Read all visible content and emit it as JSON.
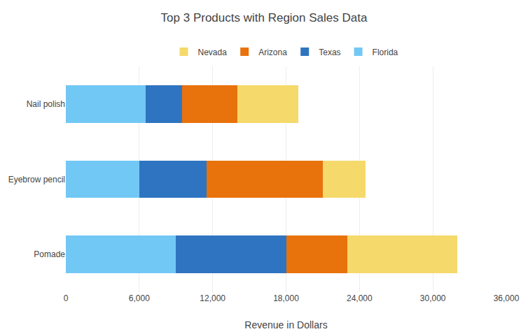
{
  "chart_data": {
    "type": "bar",
    "orientation": "horizontal",
    "stacked": true,
    "title": "Top 3 Products with Region Sales Data",
    "xlabel": "Revenue in Dollars",
    "categories": [
      "Pomade",
      "Eyebrow pencil",
      "Nail polish"
    ],
    "series": [
      {
        "name": "Florida",
        "color": "#72C8F5",
        "values": [
          9000,
          6000,
          6500
        ]
      },
      {
        "name": "Texas",
        "color": "#2E74C0",
        "values": [
          9000,
          5500,
          3000
        ]
      },
      {
        "name": "Arizona",
        "color": "#E8720C",
        "values": [
          5000,
          9500,
          4500
        ]
      },
      {
        "name": "Nevada",
        "color": "#F5D96B",
        "values": [
          9000,
          3500,
          5000
        ]
      }
    ],
    "xlim": [
      0,
      36000
    ],
    "xticks": [
      0,
      {
        "value": 6000,
        "label": "6,000"
      },
      {
        "value": 12000,
        "label": "12,000"
      },
      {
        "value": 18000,
        "label": "18,000"
      },
      {
        "value": 24000,
        "label": "24,000"
      },
      {
        "value": 30000,
        "label": "30,000"
      },
      {
        "value": 36000,
        "label": "36,000"
      }
    ],
    "grid": true,
    "legend": "top"
  }
}
